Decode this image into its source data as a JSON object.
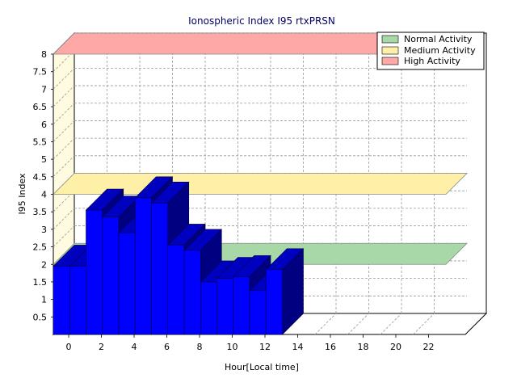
{
  "chart_data": {
    "type": "bar",
    "title": "Ionospheric Index I95 rtxPRSN",
    "xlabel": "Hour[Local time]",
    "ylabel": "I95 Index",
    "x": [
      0,
      1,
      2,
      3,
      4,
      5,
      6,
      7,
      8,
      9,
      10,
      11,
      12,
      13
    ],
    "values": [
      1.95,
      1.95,
      3.55,
      3.35,
      2.9,
      3.9,
      3.75,
      2.55,
      2.4,
      1.5,
      1.6,
      1.65,
      1.25,
      1.85
    ],
    "xlim": [
      0,
      24
    ],
    "ylim": [
      0,
      8
    ],
    "xticks": [
      "0",
      "2",
      "4",
      "6",
      "8",
      "10",
      "12",
      "14",
      "16",
      "18",
      "20",
      "22"
    ],
    "yticks": [
      "0.5",
      "1",
      "1.5",
      "2",
      "2.5",
      "3",
      "3.5",
      "4",
      "4.5",
      "5",
      "5.5",
      "6",
      "6.5",
      "7",
      "7.5",
      "8"
    ],
    "grid": true,
    "legend_position": "top-right",
    "bar_color": "#0000ff",
    "bands": [
      {
        "name": "Normal Activity",
        "value": 2.0,
        "color": "#a8d8a8"
      },
      {
        "name": "Medium Activity",
        "value": 4.0,
        "color": "#fff0a8"
      },
      {
        "name": "High Activity",
        "value": 8.0,
        "color": "#ffa8a8"
      }
    ]
  }
}
